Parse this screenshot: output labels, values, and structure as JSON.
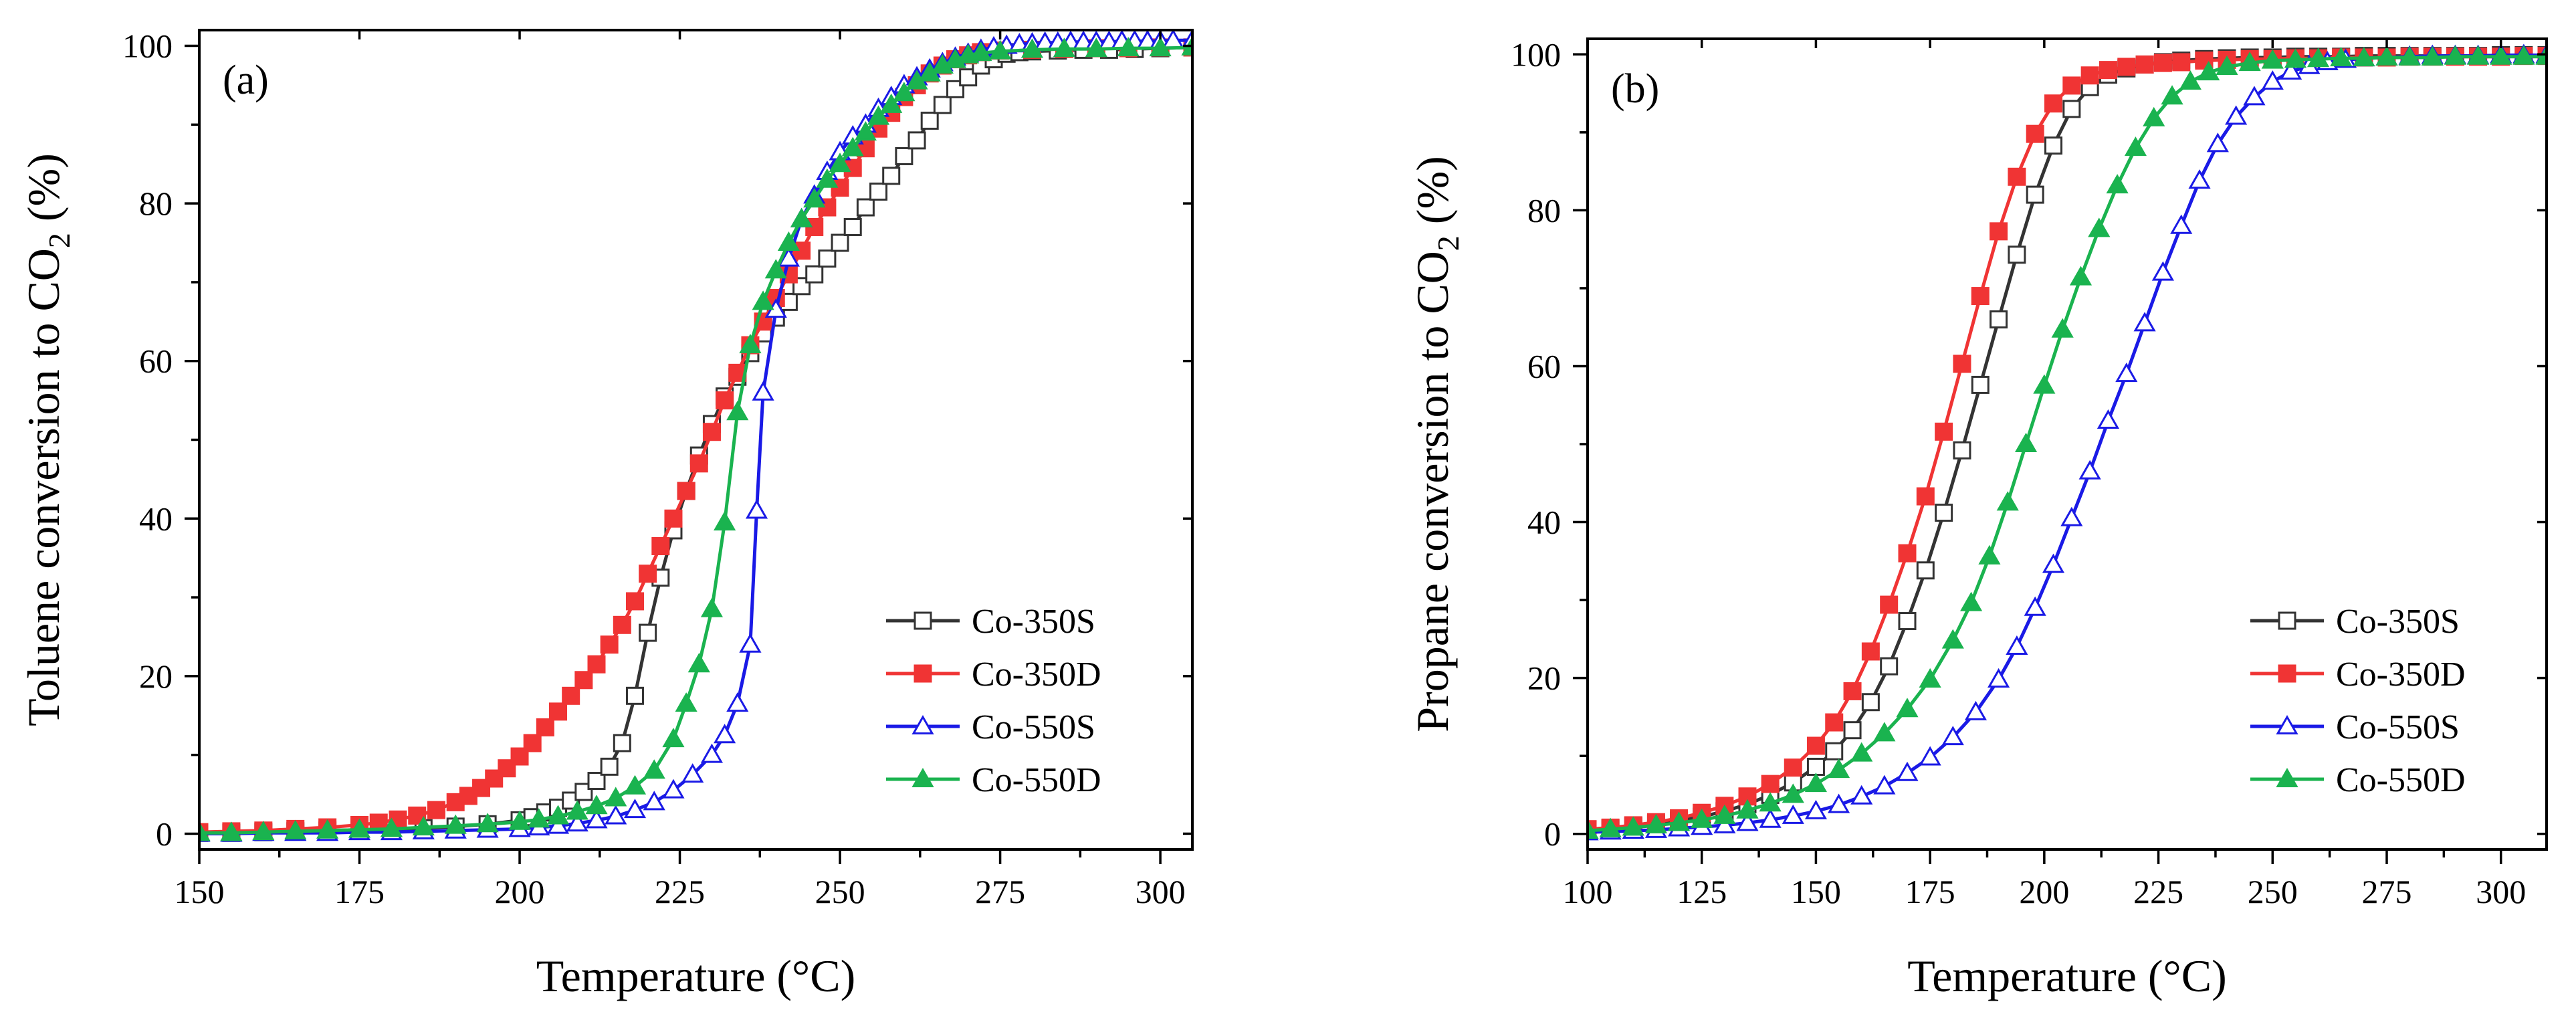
{
  "chart_data": [
    {
      "type": "line",
      "panel_label": "(a)",
      "xlabel": "Temperature (°C)",
      "ylabel": "Toluene conversion to CO",
      "ylabel_subscript": "2",
      "ylabel_suffix": " (%)",
      "xlim": [
        150,
        305
      ],
      "ylim": [
        -2,
        102
      ],
      "xticks": [
        150,
        175,
        200,
        225,
        250,
        275,
        300
      ],
      "yticks": [
        0,
        20,
        40,
        60,
        80,
        100
      ],
      "legend_position": "bottom-right",
      "series": [
        {
          "name": "Co-350S",
          "color": "#333333",
          "marker": "square-open",
          "x": [
            150,
            155,
            160,
            165,
            170,
            175,
            180,
            185,
            190,
            195,
            200,
            202,
            204,
            206,
            208,
            210,
            212,
            214,
            216,
            218,
            220,
            222,
            224,
            226,
            228,
            230,
            232,
            234,
            236,
            238,
            240,
            242,
            244,
            246,
            248,
            250,
            252,
            254,
            256,
            258,
            260,
            262,
            264,
            266,
            268,
            270,
            272,
            274,
            276,
            278,
            280,
            284,
            288,
            292,
            296,
            300,
            305
          ],
          "y": [
            0.1,
            0.1,
            0.2,
            0.3,
            0.4,
            0.5,
            0.6,
            0.7,
            0.9,
            1.2,
            1.7,
            2.1,
            2.7,
            3.3,
            4.2,
            5.3,
            6.7,
            8.5,
            11.5,
            17.5,
            25.5,
            32.5,
            38.5,
            43.5,
            48.0,
            52.0,
            55.5,
            58.0,
            61.0,
            63.5,
            65.5,
            67.5,
            69.5,
            71.0,
            73.0,
            75.0,
            77.0,
            79.5,
            81.5,
            83.5,
            86.0,
            88.0,
            90.5,
            92.5,
            94.5,
            96.0,
            97.5,
            98.3,
            99.0,
            99.2,
            99.3,
            99.4,
            99.5,
            99.5,
            99.6,
            99.7,
            99.8
          ]
        },
        {
          "name": "Co-350D",
          "color": "#f03434",
          "marker": "square-filled",
          "x": [
            150,
            155,
            160,
            165,
            170,
            175,
            178,
            181,
            184,
            187,
            190,
            192,
            194,
            196,
            198,
            200,
            202,
            204,
            206,
            208,
            210,
            212,
            214,
            216,
            218,
            220,
            222,
            224,
            226,
            228,
            230,
            232,
            234,
            236,
            238,
            240,
            242,
            244,
            246,
            248,
            250,
            252,
            254,
            256,
            258,
            260,
            262,
            264,
            266,
            268,
            270,
            272,
            275,
            280,
            285,
            290,
            295,
            300,
            305
          ],
          "y": [
            0.2,
            0.3,
            0.4,
            0.6,
            0.8,
            1.1,
            1.4,
            1.8,
            2.3,
            3.0,
            4.0,
            4.8,
            5.8,
            7.0,
            8.3,
            9.8,
            11.5,
            13.5,
            15.5,
            17.5,
            19.5,
            21.5,
            24.0,
            26.5,
            29.5,
            33.0,
            36.5,
            40.0,
            43.5,
            47.0,
            51.0,
            55.0,
            58.5,
            62.0,
            65.0,
            68.0,
            71.0,
            74.0,
            77.0,
            79.5,
            82.0,
            84.5,
            87.0,
            89.5,
            91.5,
            93.5,
            95.0,
            96.5,
            97.5,
            98.3,
            98.8,
            99.2,
            99.4,
            99.5,
            99.6,
            99.7,
            99.7,
            99.8,
            99.8
          ]
        },
        {
          "name": "Co-550S",
          "color": "#1a1ae6",
          "marker": "triangle-open",
          "x": [
            150,
            155,
            160,
            165,
            170,
            175,
            180,
            185,
            190,
            195,
            200,
            203,
            206,
            209,
            212,
            215,
            218,
            221,
            224,
            227,
            230,
            232,
            234,
            236,
            237,
            238,
            240,
            242,
            244,
            246,
            248,
            250,
            252,
            254,
            256,
            258,
            260,
            262,
            264,
            266,
            268,
            270,
            272,
            274,
            276,
            278,
            280,
            282,
            284,
            286,
            288,
            290,
            292,
            294,
            296,
            298,
            300,
            302,
            305
          ],
          "y": [
            0.0,
            0.0,
            0.1,
            0.1,
            0.1,
            0.2,
            0.2,
            0.3,
            0.4,
            0.5,
            0.6,
            0.8,
            1.0,
            1.3,
            1.7,
            2.2,
            3.0,
            4.0,
            5.5,
            7.5,
            10.0,
            12.5,
            16.5,
            24.0,
            41.0,
            56.0,
            66.5,
            73.0,
            78.0,
            81.0,
            84.0,
            86.5,
            88.5,
            90.0,
            92.0,
            93.5,
            95.0,
            96.0,
            97.0,
            97.8,
            98.5,
            99.0,
            99.5,
            99.8,
            100.0,
            100.2,
            100.3,
            100.4,
            100.4,
            100.5,
            100.5,
            100.5,
            100.5,
            100.6,
            100.6,
            100.6,
            100.6,
            100.7,
            100.7
          ]
        },
        {
          "name": "Co-550D",
          "color": "#1ab34f",
          "marker": "triangle-filled",
          "x": [
            150,
            155,
            160,
            165,
            170,
            175,
            180,
            185,
            190,
            195,
            200,
            203,
            206,
            209,
            212,
            215,
            218,
            221,
            224,
            226,
            228,
            230,
            232,
            234,
            236,
            238,
            240,
            242,
            244,
            246,
            248,
            250,
            252,
            254,
            256,
            258,
            260,
            262,
            264,
            266,
            268,
            270,
            272,
            275,
            280,
            285,
            290,
            295,
            300,
            305
          ],
          "y": [
            0.1,
            0.1,
            0.2,
            0.3,
            0.4,
            0.5,
            0.6,
            0.8,
            1.0,
            1.2,
            1.5,
            1.8,
            2.2,
            2.8,
            3.5,
            4.5,
            6.0,
            8.0,
            12.0,
            16.5,
            21.5,
            28.5,
            39.5,
            53.5,
            62.0,
            67.5,
            71.5,
            75.0,
            78.0,
            80.5,
            83.0,
            85.0,
            87.0,
            89.0,
            91.0,
            92.5,
            94.0,
            95.5,
            96.5,
            97.5,
            98.2,
            98.8,
            99.1,
            99.3,
            99.5,
            99.6,
            99.6,
            99.7,
            99.7,
            99.8
          ]
        }
      ]
    },
    {
      "type": "line",
      "panel_label": "(b)",
      "xlabel": "Temperature (°C)",
      "ylabel": "Propane conversion to CO",
      "ylabel_subscript": "2",
      "ylabel_suffix": " (%)",
      "xlim": [
        100,
        310
      ],
      "ylim": [
        -2,
        102
      ],
      "xticks": [
        100,
        125,
        150,
        175,
        200,
        225,
        250,
        275,
        300
      ],
      "yticks": [
        0,
        20,
        40,
        60,
        80,
        100
      ],
      "legend_position": "bottom-right",
      "series": [
        {
          "name": "Co-350S",
          "color": "#333333",
          "marker": "square-open",
          "x": [
            100,
            105,
            110,
            115,
            120,
            125,
            130,
            135,
            140,
            145,
            150,
            154,
            158,
            162,
            166,
            170,
            174,
            178,
            182,
            186,
            190,
            194,
            198,
            202,
            206,
            210,
            214,
            218,
            222,
            226,
            230,
            235,
            240,
            245,
            250,
            255,
            260,
            265,
            270,
            275,
            280,
            285,
            290,
            295,
            300,
            305,
            310
          ],
          "y": [
            0.5,
            0.7,
            1.0,
            1.3,
            1.7,
            2.2,
            2.9,
            3.8,
            5.0,
            6.6,
            8.6,
            10.6,
            13.3,
            16.9,
            21.5,
            27.3,
            33.8,
            41.2,
            49.2,
            57.6,
            66.0,
            74.3,
            82.0,
            88.3,
            93.0,
            95.8,
            97.4,
            98.2,
            98.7,
            99.0,
            99.2,
            99.4,
            99.5,
            99.6,
            99.6,
            99.7,
            99.7,
            99.7,
            99.8,
            99.8,
            99.8,
            99.8,
            99.8,
            99.8,
            99.9,
            99.9,
            99.9
          ]
        },
        {
          "name": "Co-350D",
          "color": "#f03434",
          "marker": "square-filled",
          "x": [
            100,
            105,
            110,
            115,
            120,
            125,
            130,
            135,
            140,
            145,
            150,
            154,
            158,
            162,
            166,
            170,
            174,
            178,
            182,
            186,
            190,
            194,
            198,
            202,
            206,
            210,
            214,
            218,
            222,
            226,
            230,
            235,
            240,
            245,
            250,
            255,
            260,
            265,
            270,
            275,
            280,
            285,
            290,
            295,
            300,
            305,
            310
          ],
          "y": [
            0.6,
            0.8,
            1.1,
            1.5,
            2.0,
            2.7,
            3.6,
            4.8,
            6.4,
            8.5,
            11.3,
            14.3,
            18.3,
            23.4,
            29.4,
            36.0,
            43.3,
            51.6,
            60.3,
            69.0,
            77.3,
            84.3,
            89.8,
            93.7,
            96.0,
            97.3,
            98.0,
            98.4,
            98.7,
            98.9,
            99.0,
            99.2,
            99.3,
            99.4,
            99.4,
            99.5,
            99.5,
            99.6,
            99.6,
            99.6,
            99.7,
            99.7,
            99.7,
            99.7,
            99.7,
            99.8,
            99.8
          ]
        },
        {
          "name": "Co-550S",
          "color": "#1a1ae6",
          "marker": "triangle-open",
          "x": [
            100,
            105,
            110,
            115,
            120,
            125,
            130,
            135,
            140,
            145,
            150,
            155,
            160,
            165,
            170,
            175,
            180,
            185,
            190,
            194,
            198,
            202,
            206,
            210,
            214,
            218,
            222,
            226,
            230,
            234,
            238,
            242,
            246,
            250,
            254,
            258,
            262,
            266,
            270,
            275,
            280,
            285,
            290,
            295,
            300,
            305,
            310
          ],
          "y": [
            0.2,
            0.3,
            0.4,
            0.5,
            0.7,
            0.9,
            1.1,
            1.4,
            1.8,
            2.3,
            2.9,
            3.7,
            4.8,
            6.1,
            7.8,
            9.8,
            12.4,
            15.6,
            19.8,
            24.0,
            29.0,
            34.5,
            40.5,
            46.5,
            53.0,
            59.0,
            65.5,
            72.0,
            78.0,
            83.8,
            88.5,
            92.0,
            94.5,
            96.5,
            97.8,
            98.5,
            99.0,
            99.3,
            99.5,
            99.6,
            99.7,
            99.8,
            99.8,
            99.8,
            99.9,
            99.9,
            99.9
          ]
        },
        {
          "name": "Co-550D",
          "color": "#1ab34f",
          "marker": "triangle-filled",
          "x": [
            100,
            105,
            110,
            115,
            120,
            125,
            130,
            135,
            140,
            145,
            150,
            155,
            160,
            165,
            170,
            175,
            180,
            184,
            188,
            192,
            196,
            200,
            204,
            208,
            212,
            216,
            220,
            224,
            228,
            232,
            236,
            240,
            245,
            250,
            255,
            260,
            265,
            270,
            275,
            280,
            285,
            290,
            295,
            300,
            305,
            310
          ],
          "y": [
            0.4,
            0.6,
            0.8,
            1.1,
            1.4,
            1.8,
            2.3,
            3.0,
            3.9,
            5.0,
            6.4,
            8.2,
            10.3,
            12.9,
            16.0,
            19.8,
            24.8,
            29.6,
            35.6,
            42.5,
            50.0,
            57.5,
            64.7,
            71.4,
            77.6,
            83.2,
            88.0,
            91.8,
            94.6,
            96.5,
            97.7,
            98.4,
            98.9,
            99.2,
            99.3,
            99.4,
            99.5,
            99.5,
            99.6,
            99.6,
            99.6,
            99.7,
            99.7,
            99.7,
            99.7,
            99.7
          ]
        }
      ]
    }
  ]
}
